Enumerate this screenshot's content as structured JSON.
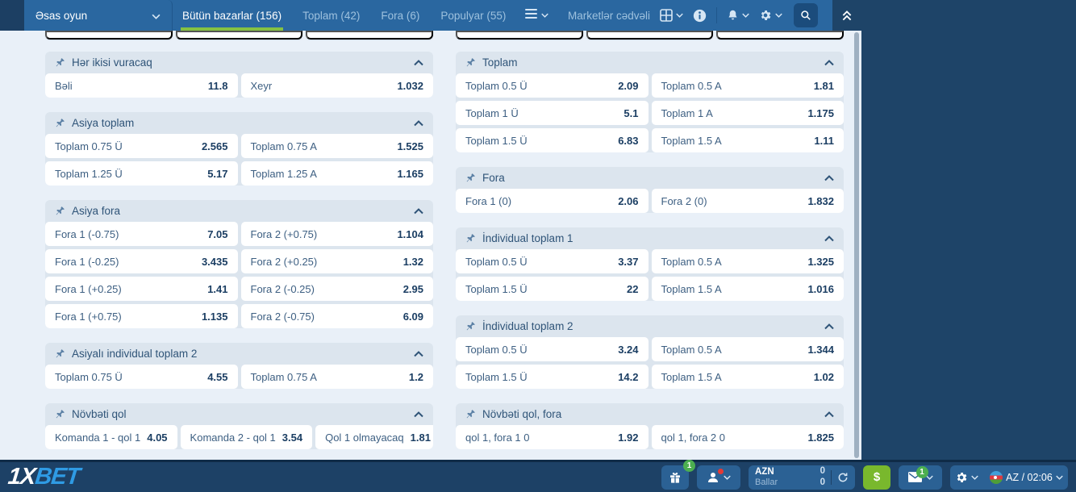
{
  "navbar": {
    "dropdown_label": "Əsas oyun",
    "tabs": [
      {
        "label": "Bütün bazarlar (156)",
        "active": true
      },
      {
        "label": "Toplam (42)",
        "active": false
      },
      {
        "label": "Fora (6)",
        "active": false
      },
      {
        "label": "Populyar (55)",
        "active": false
      }
    ],
    "markets_table_label": "Marketlər cədvəli"
  },
  "markets": {
    "left": [
      {
        "title": "Hər ikisi vuracaq",
        "rows": [
          [
            {
              "label": "Bəli",
              "odd": "11.8"
            },
            {
              "label": "Xeyr",
              "odd": "1.032"
            }
          ]
        ]
      },
      {
        "title": "Asiya toplam",
        "rows": [
          [
            {
              "label": "Toplam 0.75 Ü",
              "odd": "2.565"
            },
            {
              "label": "Toplam 0.75 A",
              "odd": "1.525"
            }
          ],
          [
            {
              "label": "Toplam 1.25 Ü",
              "odd": "5.17"
            },
            {
              "label": "Toplam 1.25 A",
              "odd": "1.165"
            }
          ]
        ]
      },
      {
        "title": "Asiya fora",
        "rows": [
          [
            {
              "label": "Fora 1 (-0.75)",
              "odd": "7.05"
            },
            {
              "label": "Fora 2 (+0.75)",
              "odd": "1.104"
            }
          ],
          [
            {
              "label": "Fora 1 (-0.25)",
              "odd": "3.435"
            },
            {
              "label": "Fora 2 (+0.25)",
              "odd": "1.32"
            }
          ],
          [
            {
              "label": "Fora 1 (+0.25)",
              "odd": "1.41"
            },
            {
              "label": "Fora 2 (-0.25)",
              "odd": "2.95"
            }
          ],
          [
            {
              "label": "Fora 1 (+0.75)",
              "odd": "1.135"
            },
            {
              "label": "Fora 2 (-0.75)",
              "odd": "6.09"
            }
          ]
        ]
      },
      {
        "title": "Asiyalı individual toplam 2",
        "rows": [
          [
            {
              "label": "Toplam 0.75 Ü",
              "odd": "4.55"
            },
            {
              "label": "Toplam 0.75 A",
              "odd": "1.2"
            }
          ]
        ]
      },
      {
        "title": "Növbəti qol",
        "rows": [
          [
            {
              "label": "Komanda 1 - qol 1",
              "odd": "4.05"
            },
            {
              "label": "Komanda 2 - qol 1",
              "odd": "3.54"
            },
            {
              "label": "Qol 1 olmayacaq",
              "odd": "1.81"
            }
          ]
        ]
      }
    ],
    "right": [
      {
        "title": "Toplam",
        "rows": [
          [
            {
              "label": "Toplam 0.5 Ü",
              "odd": "2.09"
            },
            {
              "label": "Toplam 0.5 A",
              "odd": "1.81"
            }
          ],
          [
            {
              "label": "Toplam 1 Ü",
              "odd": "5.1"
            },
            {
              "label": "Toplam 1 A",
              "odd": "1.175"
            }
          ],
          [
            {
              "label": "Toplam 1.5 Ü",
              "odd": "6.83"
            },
            {
              "label": "Toplam 1.5 A",
              "odd": "1.11"
            }
          ]
        ]
      },
      {
        "title": "Fora",
        "rows": [
          [
            {
              "label": "Fora 1 (0)",
              "odd": "2.06"
            },
            {
              "label": "Fora 2 (0)",
              "odd": "1.832"
            }
          ]
        ]
      },
      {
        "title": "İndividual toplam 1",
        "rows": [
          [
            {
              "label": "Toplam 0.5 Ü",
              "odd": "3.37"
            },
            {
              "label": "Toplam 0.5 A",
              "odd": "1.325"
            }
          ],
          [
            {
              "label": "Toplam 1.5 Ü",
              "odd": "22"
            },
            {
              "label": "Toplam 1.5 A",
              "odd": "1.016"
            }
          ]
        ]
      },
      {
        "title": "İndividual toplam 2",
        "rows": [
          [
            {
              "label": "Toplam 0.5 Ü",
              "odd": "3.24"
            },
            {
              "label": "Toplam 0.5 A",
              "odd": "1.344"
            }
          ],
          [
            {
              "label": "Toplam 1.5 Ü",
              "odd": "14.2"
            },
            {
              "label": "Toplam 1.5 A",
              "odd": "1.02"
            }
          ]
        ]
      },
      {
        "title": "Növbəti qol, fora",
        "rows": [
          [
            {
              "label": "qol 1, fora 1 0",
              "odd": "1.92"
            },
            {
              "label": "qol 1, fora 2 0",
              "odd": "1.825"
            }
          ]
        ]
      }
    ]
  },
  "bottombar": {
    "logo_1x": "1X",
    "logo_bet": "BET",
    "gift_badge": "1",
    "wallet": {
      "currency": "AZN",
      "points_label": "Ballar",
      "balance": "0",
      "points": "0"
    },
    "dollar_label": "$",
    "mail_badge": "1",
    "language": "AZ / 02:06"
  },
  "colors": {
    "navbar_blue": "#2a67a0",
    "navy": "#1e4468",
    "active_tab_underline": "#85c143",
    "brand_blue": "#2f9be4",
    "dollar_green": "#79b82d",
    "badge_green": "#4caf50"
  }
}
